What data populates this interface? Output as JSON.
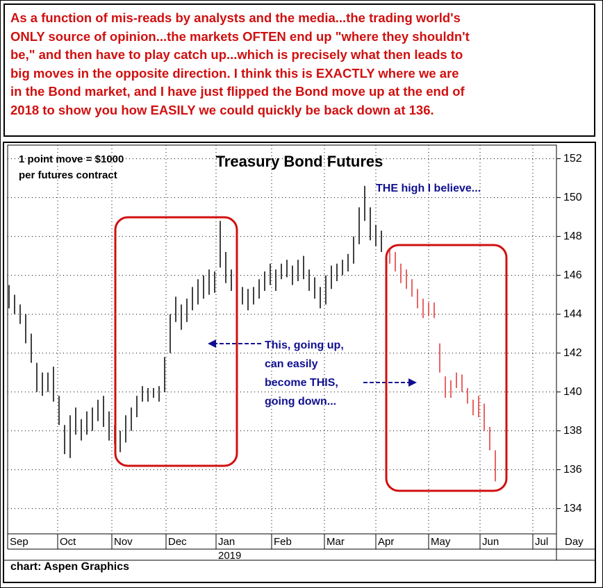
{
  "header": {
    "lines": [
      "As a function of mis-reads by analysts and the media...the trading world's",
      "ONLY source of opinion...the markets OFTEN end up \"where they shouldn't",
      "be,\" and then have to play catch up...which is precisely what then leads to",
      "big moves in the opposite direction. I think this is EXACTLY where we are",
      "in the Bond market, and I have just flipped the Bond move up at the end of",
      "2018 to show you how EASILY we could quickly be back down at 136."
    ]
  },
  "chart_data": {
    "type": "range_bar",
    "title": "Treasury Bond Futures",
    "notes": [
      "1 point move = $1000",
      "per futures contract"
    ],
    "annotations": [
      "THE high I believe...",
      "This, going up,",
      "can easily",
      "become THIS,",
      "going down..."
    ],
    "x_axis_label": "Day",
    "year_label": "2019",
    "source": "chart: Aspen Graphics",
    "xlim": [
      -0.5,
      197
    ],
    "xticks": [
      {
        "value": -0.5,
        "label": "Sep"
      },
      {
        "value": 17.5,
        "label": "Oct"
      },
      {
        "value": 37,
        "label": "Nov"
      },
      {
        "value": 56.5,
        "label": "Dec"
      },
      {
        "value": 74.5,
        "label": "Jan"
      },
      {
        "value": 94.5,
        "label": "Feb"
      },
      {
        "value": 113.5,
        "label": "Mar"
      },
      {
        "value": 132,
        "label": "Apr"
      },
      {
        "value": 151,
        "label": "May"
      },
      {
        "value": 169.5,
        "label": "Jun"
      },
      {
        "value": 188.5,
        "label": "Jul"
      }
    ],
    "ylim": [
      132.7,
      152.7
    ],
    "yticks": [
      134,
      136,
      138,
      140,
      142,
      144,
      146,
      148,
      150,
      152
    ],
    "grid": true,
    "series": [
      {
        "color": "#000000",
        "x": [
          0,
          2,
          4,
          6,
          8,
          10,
          12,
          14,
          16,
          18,
          20,
          22,
          24,
          26,
          28,
          30,
          32,
          34,
          36,
          38,
          40,
          42,
          44,
          46,
          48,
          50,
          52,
          54,
          56,
          58,
          60,
          62,
          64,
          66,
          68,
          70,
          72,
          74,
          76,
          78,
          80,
          82,
          84,
          86,
          88,
          90,
          92,
          94,
          96,
          98,
          100,
          102,
          104,
          106,
          108,
          110,
          112,
          114,
          116,
          118,
          120,
          122,
          124,
          126,
          128,
          130,
          132,
          134
        ],
        "high": [
          145.5,
          145,
          144.5,
          144,
          143,
          141.5,
          141,
          141,
          141.3,
          139.8,
          138.3,
          138.8,
          139.2,
          138.6,
          139,
          139.2,
          139.6,
          139.8,
          139,
          138.3,
          138,
          138.8,
          139.2,
          139.8,
          140.3,
          140.2,
          140.2,
          140.3,
          141.8,
          144,
          144.9,
          144.5,
          144.8,
          145.4,
          145.8,
          146,
          146.3,
          146.2,
          148.8,
          147.2,
          146.3,
          146.2,
          145.4,
          145.3,
          145.4,
          145.8,
          146.2,
          146.6,
          146.3,
          146.6,
          146.8,
          146.5,
          146.8,
          147,
          146.3,
          145.9,
          145.4,
          146,
          146.5,
          146.6,
          146.8,
          147.1,
          148,
          149.5,
          150.6,
          149.5,
          148.6,
          148.3
        ],
        "low": [
          144.3,
          144,
          143.5,
          142.5,
          141.5,
          140,
          139.8,
          140,
          139.5,
          138.3,
          136.8,
          136.6,
          137.8,
          137.5,
          137.8,
          138,
          138.5,
          138.2,
          137.5,
          137.3,
          136.9,
          137.4,
          138,
          138.7,
          139.5,
          139.5,
          139.7,
          139.5,
          140,
          142,
          143.6,
          143.2,
          143.6,
          144.2,
          144.5,
          144.8,
          145,
          145.1,
          146.4,
          145.6,
          145.2,
          145,
          144.5,
          144.2,
          144.5,
          144.8,
          145.2,
          145.5,
          145.2,
          145.8,
          145.9,
          145.5,
          145.7,
          145.8,
          145.2,
          144.8,
          144.3,
          144.5,
          145.3,
          145.7,
          146,
          146.2,
          146.6,
          147.6,
          148.8,
          147.8,
          147.5,
          147.2
        ]
      },
      {
        "color": "#e03030",
        "x": [
          137,
          139,
          141,
          143,
          145,
          147,
          149,
          151,
          153,
          155,
          157,
          159,
          161,
          163,
          165,
          167,
          169,
          171,
          173,
          175
        ],
        "high": [
          147.4,
          147.2,
          146.6,
          146.3,
          145.8,
          145.3,
          144.8,
          144.6,
          144.6,
          142.5,
          140.8,
          140.6,
          141,
          140.9,
          140.2,
          139.6,
          139.8,
          139.4,
          138.2,
          137
        ],
        "low": [
          146.6,
          146.2,
          145.6,
          145.3,
          144.9,
          144.3,
          143.8,
          143.9,
          143.8,
          141,
          139.7,
          139.7,
          140.2,
          140,
          139.4,
          138.8,
          138.7,
          138,
          137,
          135.4
        ]
      }
    ]
  }
}
